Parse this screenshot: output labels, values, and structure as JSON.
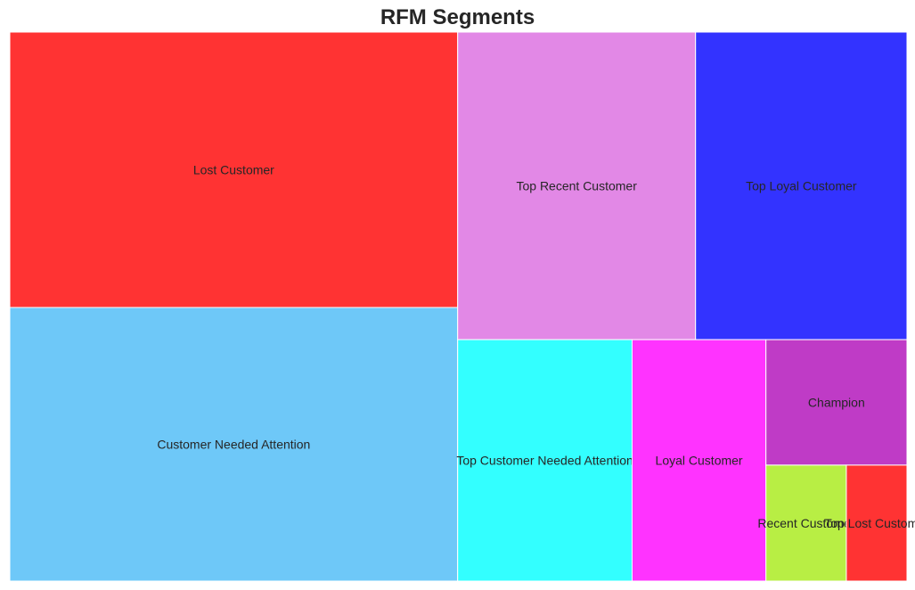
{
  "chart_data": {
    "type": "treemap",
    "title": "RFM Segments",
    "series": [
      {
        "name": "Customer Needed Attention",
        "value": 15.51,
        "color": "#6EC8F8"
      },
      {
        "name": "Lost Customer",
        "value": 15.61,
        "color": "#FF3333"
      },
      {
        "name": "Top Recent Customer",
        "value": 9.26,
        "color": "#E288E6"
      },
      {
        "name": "Top Loyal Customer",
        "value": 8.23,
        "color": "#3333FF"
      },
      {
        "name": "Loyal Customer",
        "value": 4.09,
        "color": "#FF33FF"
      },
      {
        "name": "Top Customer Needed Attention",
        "value": 5.33,
        "color": "#33FFFF"
      },
      {
        "name": "Champion",
        "value": 2.24,
        "color": "#BF3BC6"
      },
      {
        "name": "Recent Customer",
        "value": 1.18,
        "color": "#B8EE44"
      },
      {
        "name": "Top Lost Customer",
        "value": 0.89,
        "color": "#FF3333"
      }
    ]
  }
}
